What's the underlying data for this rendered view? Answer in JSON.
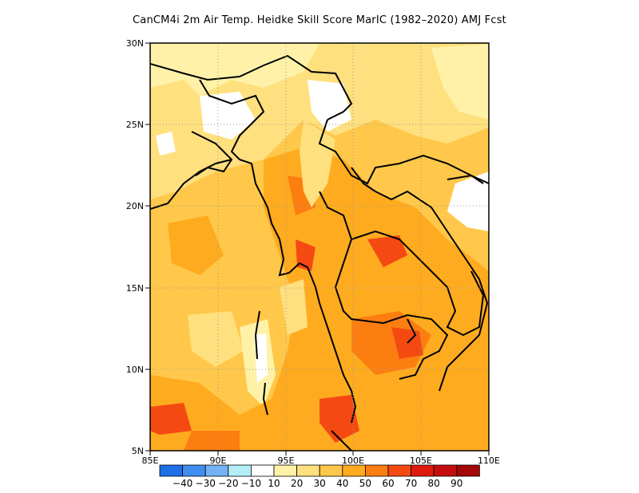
{
  "title": "CanCM4i  2m Air Temp. Heidke Skill Score MarIC (1982–2020) AMJ Fcst",
  "map": {
    "lon_ticks": [
      "85E",
      "90E",
      "95E",
      "100E",
      "105E",
      "110E"
    ],
    "lat_ticks": [
      "30N",
      "25N",
      "20N",
      "15N",
      "10N",
      "5N"
    ],
    "lon_range": [
      85,
      110
    ],
    "lat_range": [
      5,
      30
    ],
    "grid": "dotted"
  },
  "colorbar": {
    "labels": [
      "−40",
      "−30",
      "−20",
      "−10",
      "10",
      "20",
      "30",
      "40",
      "50",
      "60",
      "70",
      "80",
      "90"
    ],
    "colors": [
      "#1f6fe6",
      "#3f8ef0",
      "#73b2f5",
      "#b3eef8",
      "#ffffff",
      "#fff2a8",
      "#ffe07e",
      "#ffc84a",
      "#ffab1f",
      "#fd7e10",
      "#f44a12",
      "#e0190f",
      "#c50d0d",
      "#a30707"
    ]
  }
}
